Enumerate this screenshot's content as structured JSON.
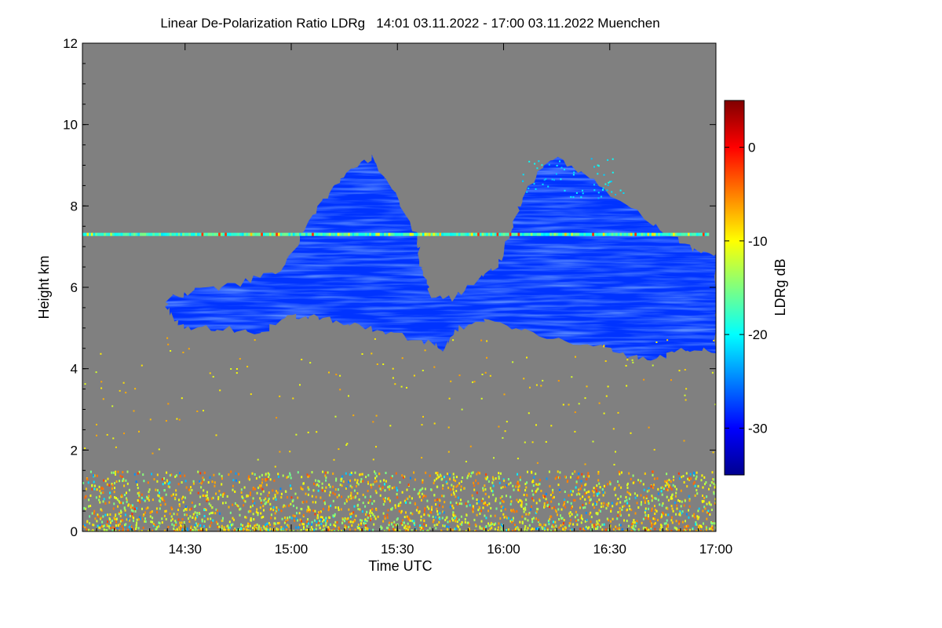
{
  "chart_data": {
    "type": "heatmap",
    "title": "Linear De-Polarization Ratio LDRg   14:01 03.11.2022 - 17:00 03.11.2022 Muenchen",
    "xlabel": "Time UTC",
    "ylabel": "Height km",
    "x_range": [
      "14:01",
      "17:00"
    ],
    "x_ticks": [
      "14:30",
      "15:00",
      "15:30",
      "16:00",
      "16:30",
      "17:00"
    ],
    "ylim": [
      0,
      12
    ],
    "y_ticks": [
      0,
      2,
      4,
      6,
      8,
      10,
      12
    ],
    "colorbar": {
      "label": "LDRg dB",
      "range": [
        -35,
        5
      ],
      "ticks": [
        0,
        -10,
        -20,
        -30
      ],
      "colormap": "jet"
    },
    "background_color": "#808080",
    "features": [
      {
        "name": "cirrus cloud layer",
        "time_start": "14:24",
        "time_end": "17:00",
        "height_base_km": 4.5,
        "height_top_km": 9.2,
        "ldr_db_approx": -28
      },
      {
        "name": "artifact line",
        "time_start": "14:01",
        "time_end": "16:58",
        "height_km": 7.3,
        "ldr_db_approx": -15
      },
      {
        "name": "boundary layer noise",
        "time_start": "14:01",
        "time_end": "17:00",
        "height_base_km": 0.0,
        "height_top_km": 1.5,
        "ldr_db_approx": -10
      }
    ]
  }
}
